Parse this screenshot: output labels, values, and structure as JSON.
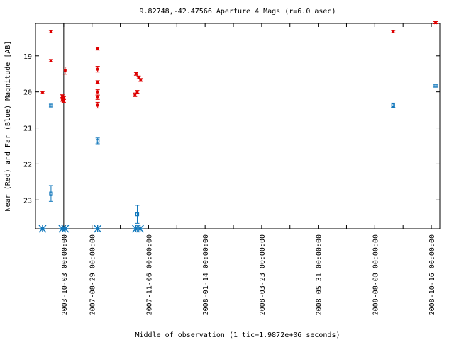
{
  "chart_data": {
    "type": "scatter",
    "title": "9.82748,-42.47566   Aperture 4 Mags (r=6.0 asec)",
    "xlabel": "Middle of observation (1 tic=1.9872e+06 seconds)",
    "ylabel": "Near (Red) and Far (Blue) Magnitude [AB]",
    "y_inverted": true,
    "ylim_top": 18.1,
    "ylim_bottom": 23.8,
    "xlim_tics": [
      -1,
      13.3
    ],
    "y_ticks": [
      {
        "value": 19,
        "label": "19"
      },
      {
        "value": 20,
        "label": "20"
      },
      {
        "value": 21,
        "label": "21"
      },
      {
        "value": 22,
        "label": "22"
      },
      {
        "value": 23,
        "label": "23"
      }
    ],
    "x_ticks": [
      {
        "tic": 0,
        "label": "2003-10-03 00:00:00"
      },
      {
        "tic": 1,
        "label": "2007-08-29 00:00:00"
      },
      {
        "tic": 3,
        "label": "2007-11-06 00:00:00"
      },
      {
        "tic": 5,
        "label": "2008-01-14 00:00:00"
      },
      {
        "tic": 7,
        "label": "2008-03-23 00:00:00"
      },
      {
        "tic": 9,
        "label": "2008-05-31 00:00:00"
      },
      {
        "tic": 11,
        "label": "2008-08-08 00:00:00"
      },
      {
        "tic": 13,
        "label": "2008-10-16 00:00:00"
      }
    ],
    "vertical_line_tic": 0,
    "series": [
      {
        "color": "#dd0000",
        "marker": "star",
        "points": [
          {
            "x": -0.75,
            "y": 20.02,
            "err": 0.03
          },
          {
            "x": -0.45,
            "y": 18.33,
            "err": 0.03
          },
          {
            "x": -0.45,
            "y": 19.13,
            "err": 0.03
          },
          {
            "x": -0.05,
            "y": 20.12,
            "err": 0.04
          },
          {
            "x": -0.05,
            "y": 20.22,
            "err": 0.04
          },
          {
            "x": 0.0,
            "y": 20.17,
            "err": 0.04
          },
          {
            "x": 0.0,
            "y": 20.25,
            "err": 0.04
          },
          {
            "x": 0.05,
            "y": 19.41,
            "err": 0.1
          },
          {
            "x": 1.2,
            "y": 18.8,
            "err": 0.04
          },
          {
            "x": 1.2,
            "y": 19.37,
            "err": 0.08
          },
          {
            "x": 1.2,
            "y": 19.73,
            "err": 0.04
          },
          {
            "x": 1.2,
            "y": 20.0,
            "err": 0.06
          },
          {
            "x": 1.2,
            "y": 20.15,
            "err": 0.06
          },
          {
            "x": 1.2,
            "y": 20.37,
            "err": 0.08
          },
          {
            "x": 2.52,
            "y": 20.08,
            "err": 0.05
          },
          {
            "x": 2.56,
            "y": 19.5,
            "err": 0.04
          },
          {
            "x": 2.6,
            "y": 20.0,
            "err": 0.04
          },
          {
            "x": 2.65,
            "y": 19.6,
            "err": 0.04
          },
          {
            "x": 2.72,
            "y": 19.67,
            "err": 0.04
          },
          {
            "x": 11.65,
            "y": 18.33,
            "err": 0.03
          },
          {
            "x": 13.15,
            "y": 18.08,
            "err": 0.03
          }
        ]
      },
      {
        "color": "#1177bb",
        "marker": "box",
        "points": [
          {
            "x": -0.45,
            "y": 20.38,
            "err": 0.04
          },
          {
            "x": -0.45,
            "y": 22.82,
            "err": 0.22
          },
          {
            "x": 1.2,
            "y": 21.36,
            "err": 0.08
          },
          {
            "x": 2.6,
            "y": 23.4,
            "err": 0.25
          },
          {
            "x": 11.65,
            "y": 20.37,
            "err": 0.06
          },
          {
            "x": 13.15,
            "y": 19.83,
            "err": 0.04
          }
        ]
      },
      {
        "color": "#1177bb",
        "marker": "asterisk-limit",
        "points": [
          {
            "x": -0.75,
            "y": 23.8
          },
          {
            "x": -0.05,
            "y": 23.8
          },
          {
            "x": 0.05,
            "y": 23.8
          },
          {
            "x": 1.2,
            "y": 23.8
          },
          {
            "x": 2.55,
            "y": 23.8
          },
          {
            "x": 2.7,
            "y": 23.8
          }
        ]
      }
    ]
  }
}
